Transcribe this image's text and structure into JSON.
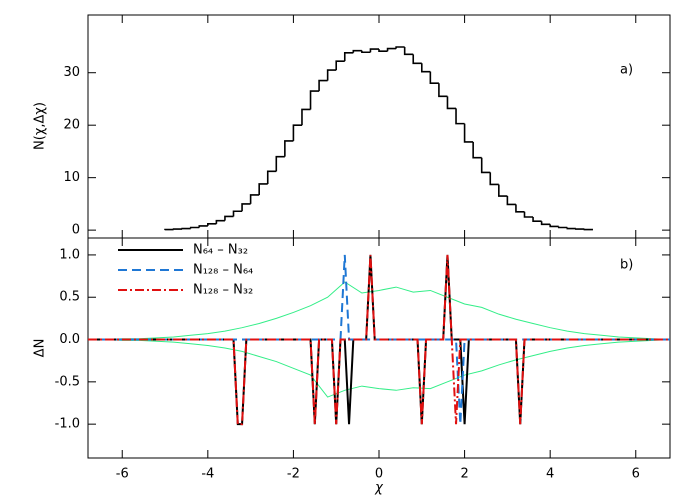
{
  "chart_data": [
    {
      "type": "histogram",
      "ylabel": "N(χ,Δχ)",
      "annotation": "a)",
      "color": "#000000",
      "bins": [
        -5,
        -4.8,
        -4.6,
        -4.4,
        -4.2,
        -4,
        -3.8,
        -3.6,
        -3.4,
        -3.2,
        -3,
        -2.8,
        -2.6,
        -2.4,
        -2.2,
        -2,
        -1.8,
        -1.6,
        -1.4,
        -1.2,
        -1,
        -0.8,
        -0.6,
        -0.4,
        -0.2,
        0,
        0.2,
        0.4,
        0.6,
        0.8,
        1,
        1.2,
        1.4,
        1.6,
        1.8,
        2,
        2.2,
        2.4,
        2.6,
        2.8,
        3,
        3.2,
        3.4,
        3.6,
        3.8,
        4,
        4.2,
        4.4,
        4.6,
        4.8,
        5
      ],
      "counts": [
        0.1,
        0.2,
        0.3,
        0.5,
        0.8,
        1.2,
        1.8,
        2.6,
        3.6,
        5.0,
        6.7,
        8.8,
        11.2,
        14,
        17,
        20,
        23,
        26.5,
        28.5,
        30.5,
        32.2,
        33.8,
        34.2,
        33.9,
        34.5,
        34.1,
        34.6,
        34.9,
        33.5,
        31.8,
        30.2,
        28,
        25.5,
        23.2,
        20.3,
        16.8,
        13.8,
        11,
        8.7,
        6.5,
        4.9,
        3.5,
        2.5,
        1.7,
        1.1,
        0.7,
        0.5,
        0.3,
        0.2,
        0.1
      ],
      "xlim": [
        -6.8,
        6.8
      ],
      "ylim": [
        -1.5,
        41
      ],
      "yticks": [
        0,
        10,
        20,
        30
      ]
    },
    {
      "type": "line",
      "xlabel": "χ",
      "ylabel": "ΔN",
      "annotation": "b)",
      "legend": "upper left",
      "xlim": [
        -6.8,
        6.8
      ],
      "ylim": [
        -1.4,
        1.2
      ],
      "xticks": [
        -6,
        -4,
        -2,
        0,
        2,
        4,
        6
      ],
      "yticks": [
        {
          "value": -1,
          "label": "-1.0"
        },
        -0.5,
        {
          "value": 0,
          "label": "0.0"
        },
        0.5,
        {
          "value": 1,
          "label": "1.0"
        }
      ],
      "x": [
        -6.8,
        -3.4,
        -3.3,
        -3.2,
        -3.1,
        -1.6,
        -1.5,
        -1.4,
        -1.1,
        -1.0,
        -0.9,
        -0.8,
        -0.7,
        -0.6,
        -0.3,
        -0.2,
        -0.1,
        0.9,
        1.0,
        1.1,
        1.4,
        1.5,
        1.6,
        1.7,
        1.8,
        1.9,
        2.0,
        2.1,
        3.2,
        3.3,
        3.4,
        6.8
      ],
      "series": [
        {
          "name": "N₆₄ – N₃₂",
          "color": "#000000",
          "dash": "none",
          "values": [
            0,
            0,
            -1,
            -1,
            0,
            0,
            -1,
            0,
            0,
            -1,
            0,
            0,
            -1,
            0,
            0,
            1,
            0,
            0,
            -1,
            0,
            0,
            0,
            1,
            0,
            0,
            0,
            -1,
            0,
            0,
            -1,
            0,
            0
          ]
        },
        {
          "name": "N₁₂₈ – N₆₄",
          "color": "#1f77d4",
          "dash": "9,5",
          "values": [
            0,
            0,
            0,
            0,
            0,
            0,
            0,
            0,
            0,
            0,
            0,
            1,
            0,
            0,
            0,
            0,
            0,
            0,
            0,
            0,
            0,
            0,
            0,
            0,
            0,
            -1,
            0,
            0,
            0,
            0,
            0,
            0
          ]
        },
        {
          "name": "N₁₂₈ – N₃₂",
          "color": "#e01010",
          "dash": "9,3,2,3",
          "values": [
            0,
            0,
            -1,
            -1,
            0,
            0,
            -1,
            0,
            0,
            -1,
            0,
            0,
            0,
            0,
            0,
            1,
            0,
            0,
            -1,
            0,
            0,
            0,
            1,
            0,
            -1,
            0,
            0,
            0,
            0,
            -1,
            0,
            0
          ]
        }
      ],
      "envelope": {
        "color": "#33ee88",
        "x": [
          -6.8,
          -6.4,
          -6.0,
          -5.6,
          -5.2,
          -4.8,
          -4.4,
          -4.0,
          -3.6,
          -3.2,
          -2.8,
          -2.4,
          -2.0,
          -1.6,
          -1.2,
          -0.8,
          -0.4,
          0.0,
          0.4,
          0.8,
          1.2,
          1.6,
          2.0,
          2.4,
          2.8,
          3.2,
          3.6,
          4.0,
          4.4,
          4.8,
          5.2,
          5.6,
          6.0,
          6.4,
          6.8
        ],
        "upper": [
          0,
          0,
          0.01,
          0.01,
          0.02,
          0.03,
          0.05,
          0.07,
          0.1,
          0.14,
          0.19,
          0.25,
          0.32,
          0.4,
          0.5,
          0.68,
          0.55,
          0.58,
          0.62,
          0.56,
          0.58,
          0.5,
          0.42,
          0.38,
          0.3,
          0.24,
          0.19,
          0.14,
          0.1,
          0.07,
          0.05,
          0.03,
          0.02,
          0.01,
          0
        ],
        "lower": [
          0,
          0,
          -0.01,
          -0.01,
          -0.02,
          -0.03,
          -0.05,
          -0.07,
          -0.1,
          -0.14,
          -0.2,
          -0.26,
          -0.34,
          -0.42,
          -0.68,
          -0.6,
          -0.55,
          -0.58,
          -0.6,
          -0.57,
          -0.58,
          -0.5,
          -0.42,
          -0.37,
          -0.3,
          -0.24,
          -0.19,
          -0.14,
          -0.1,
          -0.07,
          -0.05,
          -0.03,
          -0.02,
          -0.01,
          0
        ]
      }
    }
  ]
}
